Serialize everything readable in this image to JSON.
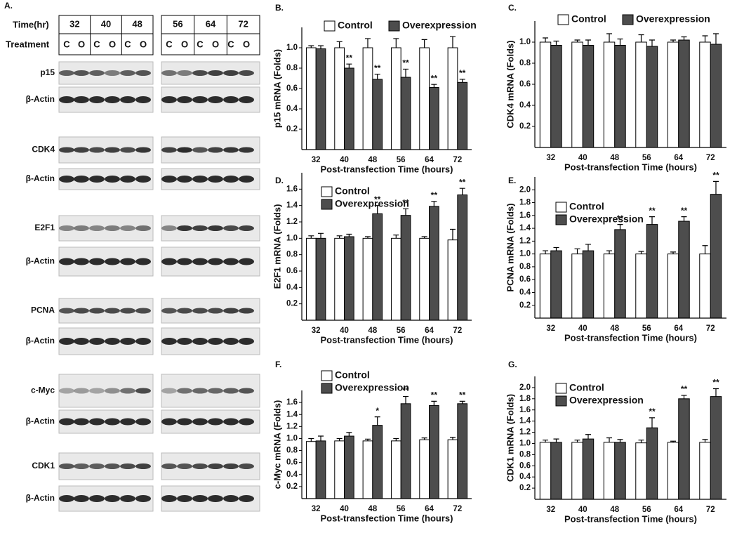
{
  "panel_a": {
    "panel": "A.",
    "time_label": "Time(hr)",
    "treatment_label": "Treatment",
    "times": [
      "32",
      "40",
      "48",
      "56",
      "64",
      "72"
    ],
    "treatments": [
      "C",
      "O",
      "C",
      "O",
      "C",
      "O",
      "C",
      "O",
      "C",
      "O",
      "C",
      "O"
    ],
    "blots": [
      "p15",
      "β-Actin",
      "CDK4",
      "β-Actin",
      "E2F1",
      "β-Actin",
      "PCNA",
      "β-Actin",
      "c-Myc",
      "β-Actin",
      "CDK1",
      "β-Actin"
    ]
  },
  "chart_data": [
    {
      "type": "bar",
      "panel": "B.",
      "y_label": "p15 mRNA (Folds)",
      "x_label": "Post-transfection Time (hours)",
      "legend_layout": "row",
      "categories": [
        "32",
        "40",
        "48",
        "56",
        "64",
        "72"
      ],
      "ylim": [
        0,
        1.2
      ],
      "yticks": [
        0.2,
        0.4,
        0.6,
        0.8,
        {
          "value": 1,
          "label": "1.0"
        }
      ],
      "series": [
        {
          "name": "Control",
          "color": "#ffffff",
          "values": [
            1,
            1,
            1,
            1,
            1,
            1
          ],
          "errors": [
            0.02,
            0.06,
            0.09,
            0.09,
            0.08,
            0.11
          ],
          "significance": [
            null,
            null,
            null,
            null,
            null,
            null
          ]
        },
        {
          "name": "Overexpression",
          "color": "#4d4d4d",
          "values": [
            0.99,
            0.8,
            0.69,
            0.71,
            0.61,
            0.66
          ],
          "errors": [
            0.03,
            0.04,
            0.05,
            0.08,
            0.03,
            0.03
          ],
          "significance": [
            null,
            "**",
            "**",
            "**",
            "**",
            "**"
          ]
        }
      ]
    },
    {
      "type": "bar",
      "panel": "C.",
      "y_label": "CDK4 mRNA (Folds)",
      "x_label": "Post-transfection Time (hours)",
      "legend_layout": "row",
      "categories": [
        "32",
        "40",
        "48",
        "56",
        "64",
        "72"
      ],
      "ylim": [
        0,
        1.2
      ],
      "yticks": [
        0.2,
        0.4,
        0.6,
        0.8,
        {
          "value": 1,
          "label": "1.0"
        }
      ],
      "series": [
        {
          "name": "Control",
          "color": "#ffffff",
          "values": [
            1,
            1,
            1,
            1,
            1,
            1
          ],
          "errors": [
            0.04,
            0.02,
            0.08,
            0.07,
            0.02,
            0.06
          ],
          "significance": [
            null,
            null,
            null,
            null,
            null,
            null
          ]
        },
        {
          "name": "Overexpression",
          "color": "#4d4d4d",
          "values": [
            0.97,
            0.97,
            0.97,
            0.96,
            1.02,
            0.98
          ],
          "errors": [
            0.04,
            0.05,
            0.06,
            0.06,
            0.03,
            0.1
          ],
          "significance": [
            null,
            null,
            null,
            null,
            null,
            null
          ]
        }
      ]
    },
    {
      "type": "bar",
      "panel": "D.",
      "y_label": "E2F1 mRNA (Folds)",
      "x_label": "Post-transfection Time (hours)",
      "legend_layout": "column",
      "categories": [
        "32",
        "40",
        "48",
        "56",
        "64",
        "72"
      ],
      "ylim": [
        0,
        1.8
      ],
      "yticks": [
        0.2,
        0.4,
        0.6,
        0.8,
        {
          "value": 1,
          "label": "1.0"
        },
        1.2,
        1.4,
        1.6
      ],
      "series": [
        {
          "name": "Control",
          "color": "#ffffff",
          "values": [
            1,
            1,
            1,
            1,
            1,
            0.98
          ],
          "errors": [
            0.03,
            0.03,
            0.02,
            0.04,
            0.02,
            0.13
          ],
          "significance": [
            null,
            null,
            null,
            null,
            null,
            null
          ]
        },
        {
          "name": "Overexpression",
          "color": "#4d4d4d",
          "values": [
            1,
            1.02,
            1.3,
            1.28,
            1.39,
            1.53
          ],
          "errors": [
            0.06,
            0.03,
            0.1,
            0.08,
            0.06,
            0.08
          ],
          "significance": [
            null,
            null,
            "**",
            "**",
            "**",
            "**"
          ]
        }
      ]
    },
    {
      "type": "bar",
      "panel": "E.",
      "y_label": "PCNA mRNA (Folds)",
      "x_label": "Post-transfection Time (hours)",
      "legend_layout": "column",
      "categories": [
        "32",
        "40",
        "48",
        "56",
        "64",
        "72"
      ],
      "ylim": [
        0,
        2.2
      ],
      "yticks": [
        0.2,
        0.4,
        0.6,
        0.8,
        {
          "value": 1,
          "label": "1.0"
        },
        1.2,
        1.4,
        1.6,
        1.8,
        {
          "value": 2,
          "label": "2.0"
        }
      ],
      "series": [
        {
          "name": "Control",
          "color": "#ffffff",
          "values": [
            1,
            1,
            1,
            1,
            1,
            1
          ],
          "errors": [
            0.05,
            0.08,
            0.05,
            0.04,
            0.03,
            0.13
          ],
          "significance": [
            null,
            null,
            null,
            null,
            null,
            null
          ]
        },
        {
          "name": "Overexpression",
          "color": "#4d4d4d",
          "values": [
            1.05,
            1.05,
            1.38,
            1.46,
            1.51,
            1.93
          ],
          "errors": [
            0.05,
            0.1,
            0.08,
            0.12,
            0.07,
            0.2
          ],
          "significance": [
            null,
            null,
            "**",
            "**",
            "**",
            "**"
          ]
        }
      ]
    },
    {
      "type": "bar",
      "panel": "F.",
      "y_label": "c-Myc mRNA (Folds)",
      "x_label": "Post-transfection Time (hours)",
      "legend_layout": "column",
      "categories": [
        "32",
        "40",
        "48",
        "56",
        "64",
        "72"
      ],
      "ylim": [
        0,
        1.8
      ],
      "yticks": [
        0.2,
        0.4,
        0.6,
        0.8,
        {
          "value": 1,
          "label": "1.0"
        },
        1.2,
        1.4,
        1.6
      ],
      "series": [
        {
          "name": "Control",
          "color": "#ffffff",
          "values": [
            0.95,
            0.96,
            0.96,
            0.96,
            0.98,
            0.98
          ],
          "errors": [
            0.05,
            0.04,
            0.03,
            0.04,
            0.03,
            0.04
          ],
          "significance": [
            null,
            null,
            null,
            null,
            null,
            null
          ]
        },
        {
          "name": "Overexpression",
          "color": "#4d4d4d",
          "values": [
            0.96,
            1.04,
            1.22,
            1.58,
            1.55,
            1.58
          ],
          "errors": [
            0.08,
            0.06,
            0.14,
            0.12,
            0.07,
            0.04
          ],
          "significance": [
            null,
            null,
            "*",
            "**",
            "**",
            "**"
          ]
        }
      ]
    },
    {
      "type": "bar",
      "panel": "G.",
      "y_label": "CDK1 mRNA (Folds)",
      "x_label": "Post-transfection Time (hours)",
      "legend_layout": "column",
      "categories": [
        "32",
        "40",
        "48",
        "56",
        "64",
        "72"
      ],
      "ylim": [
        0,
        2.2
      ],
      "yticks": [
        0.2,
        0.4,
        0.6,
        0.8,
        {
          "value": 1,
          "label": "1.0"
        },
        1.2,
        1.4,
        1.6,
        1.8,
        {
          "value": 2,
          "label": "2.0"
        }
      ],
      "series": [
        {
          "name": "Control",
          "color": "#ffffff",
          "values": [
            1.02,
            1.02,
            1.02,
            1.01,
            1.02,
            1.02
          ],
          "errors": [
            0.04,
            0.04,
            0.08,
            0.05,
            0.02,
            0.05
          ],
          "significance": [
            null,
            null,
            null,
            null,
            null,
            null
          ]
        },
        {
          "name": "Overexpression",
          "color": "#4d4d4d",
          "values": [
            1.02,
            1.08,
            1.02,
            1.28,
            1.8,
            1.84
          ],
          "errors": [
            0.06,
            0.08,
            0.05,
            0.18,
            0.06,
            0.14
          ],
          "significance": [
            null,
            null,
            null,
            "**",
            "**",
            "**"
          ]
        }
      ]
    }
  ]
}
